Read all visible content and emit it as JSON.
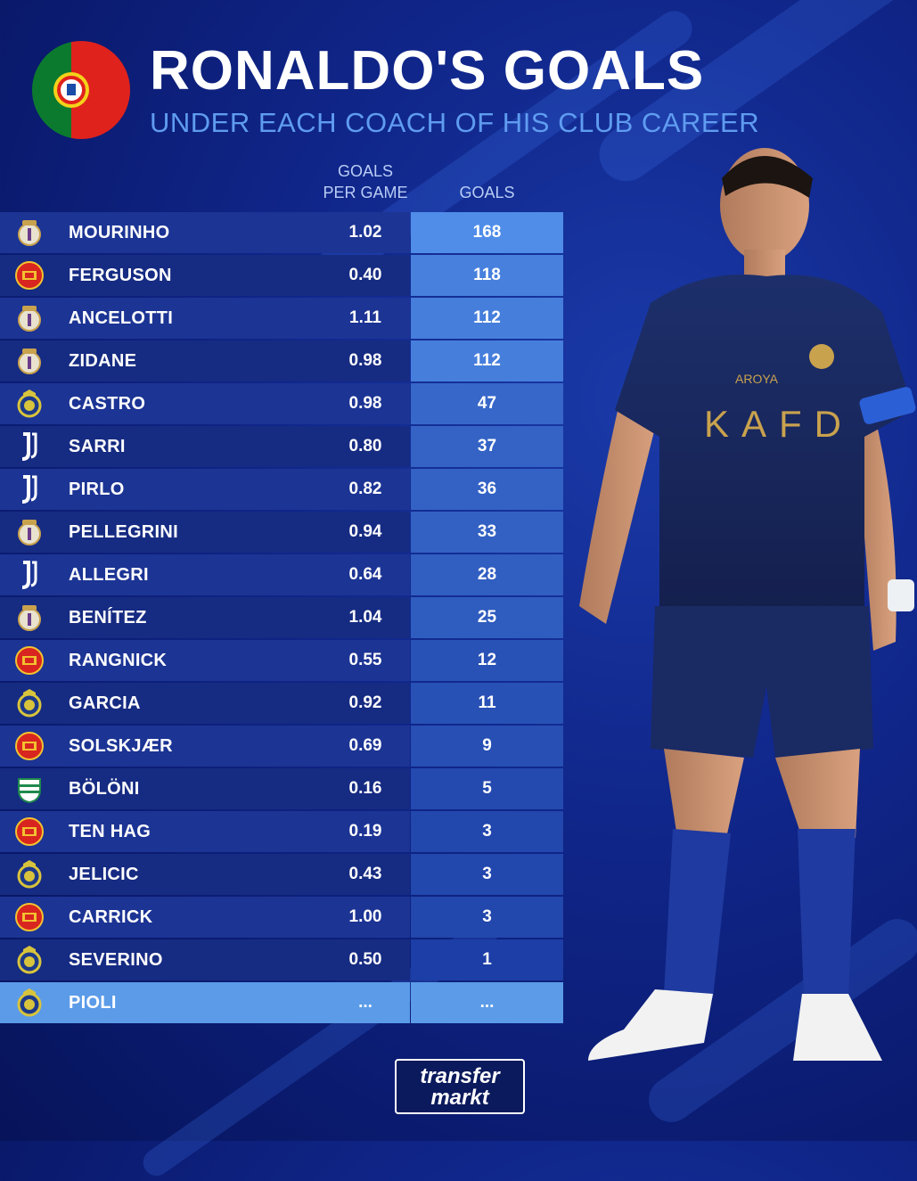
{
  "header": {
    "title": "RONALDO'S GOALS",
    "subtitle": "UNDER EACH COACH OF HIS CLUB CAREER"
  },
  "brand": {
    "line1": "transfer",
    "line2": "markt"
  },
  "colors": {
    "background": "#10268a",
    "accent": "#5f9cf0",
    "goal_bar_max": "#4f8de8",
    "goal_bar_min": "#1c3ea6",
    "highlight_row": "#5b9be8",
    "real_madrid": "#e8e2cf",
    "man_utd": "#d8251f",
    "al_nassr": "#d8c43c",
    "juventus": "#ffffff",
    "sporting": "#1f8a4c"
  },
  "chart_data": {
    "type": "table",
    "title": "RONALDO'S GOALS",
    "subtitle": "UNDER EACH COACH OF HIS CLUB CAREER",
    "columns": [
      "GOALS\nPER GAME",
      "GOALS"
    ],
    "rows": [
      {
        "coach": "MOURINHO",
        "club_icon": "real-madrid-crest",
        "goals_per_game": "1.02",
        "goals": "168"
      },
      {
        "coach": "FERGUSON",
        "club_icon": "man-utd-crest",
        "goals_per_game": "0.40",
        "goals": "118"
      },
      {
        "coach": "ANCELOTTI",
        "club_icon": "real-madrid-crest",
        "goals_per_game": "1.11",
        "goals": "112"
      },
      {
        "coach": "ZIDANE",
        "club_icon": "real-madrid-crest",
        "goals_per_game": "0.98",
        "goals": "112"
      },
      {
        "coach": "CASTRO",
        "club_icon": "al-nassr-crest",
        "goals_per_game": "0.98",
        "goals": "47"
      },
      {
        "coach": "SARRI",
        "club_icon": "juventus-crest",
        "goals_per_game": "0.80",
        "goals": "37"
      },
      {
        "coach": "PIRLO",
        "club_icon": "juventus-crest",
        "goals_per_game": "0.82",
        "goals": "36"
      },
      {
        "coach": "PELLEGRINI",
        "club_icon": "real-madrid-crest",
        "goals_per_game": "0.94",
        "goals": "33"
      },
      {
        "coach": "ALLEGRI",
        "club_icon": "juventus-crest",
        "goals_per_game": "0.64",
        "goals": "28"
      },
      {
        "coach": "BENÍTEZ",
        "club_icon": "real-madrid-crest",
        "goals_per_game": "1.04",
        "goals": "25"
      },
      {
        "coach": "RANGNICK",
        "club_icon": "man-utd-crest",
        "goals_per_game": "0.55",
        "goals": "12"
      },
      {
        "coach": "GARCIA",
        "club_icon": "al-nassr-crest",
        "goals_per_game": "0.92",
        "goals": "11"
      },
      {
        "coach": "SOLSKJÆR",
        "club_icon": "man-utd-crest",
        "goals_per_game": "0.69",
        "goals": "9"
      },
      {
        "coach": "BÖLÖNI",
        "club_icon": "sporting-crest",
        "goals_per_game": "0.16",
        "goals": "5"
      },
      {
        "coach": "TEN HAG",
        "club_icon": "man-utd-crest",
        "goals_per_game": "0.19",
        "goals": "3"
      },
      {
        "coach": "JELICIC",
        "club_icon": "al-nassr-crest",
        "goals_per_game": "0.43",
        "goals": "3"
      },
      {
        "coach": "CARRICK",
        "club_icon": "man-utd-crest",
        "goals_per_game": "1.00",
        "goals": "3"
      },
      {
        "coach": "SEVERINO",
        "club_icon": "al-nassr-crest",
        "goals_per_game": "0.50",
        "goals": "1"
      },
      {
        "coach": "PIOLI",
        "club_icon": "al-nassr-crest",
        "goals_per_game": "...",
        "goals": "...",
        "highlighted": true
      }
    ]
  },
  "icons": {
    "flag": "portugal-flag-icon",
    "player": "player-photo",
    "logo": "transfermarkt-logo"
  }
}
